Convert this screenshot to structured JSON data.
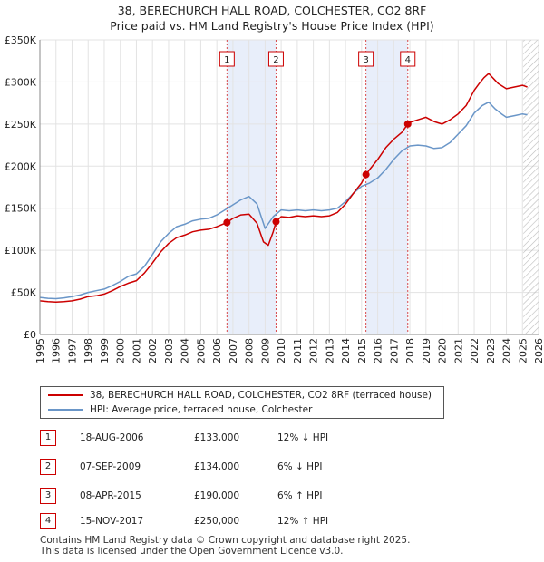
{
  "title_line1": "38, BERECHURCH HALL ROAD, COLCHESTER, CO2 8RF",
  "title_line2": "Price paid vs. HM Land Registry's House Price Index (HPI)",
  "colors": {
    "property": "#cc0000",
    "hpi": "#6a96c8",
    "shade": "#e8eefa",
    "marker": "#cc0000"
  },
  "chart_data": {
    "type": "line",
    "x_range": [
      1995,
      2026
    ],
    "ylim": [
      0,
      350000
    ],
    "y_ticks": [
      0,
      50000,
      100000,
      150000,
      200000,
      250000,
      300000,
      350000
    ],
    "y_tick_labels": [
      "£0",
      "£50K",
      "£100K",
      "£150K",
      "£200K",
      "£250K",
      "£300K",
      "£350K"
    ],
    "x_ticks": [
      1995,
      1996,
      1997,
      1998,
      1999,
      2000,
      2001,
      2002,
      2003,
      2004,
      2005,
      2006,
      2007,
      2008,
      2009,
      2010,
      2011,
      2012,
      2013,
      2014,
      2015,
      2016,
      2017,
      2018,
      2019,
      2020,
      2021,
      2022,
      2023,
      2024,
      2025,
      2026
    ],
    "x_tick_labels": [
      "1995",
      "1996",
      "1997",
      "1998",
      "1999",
      "2000",
      "2001",
      "2002",
      "2003",
      "2004",
      "2005",
      "2006",
      "2007",
      "2008",
      "2009",
      "2010",
      "2011",
      "2012",
      "2013",
      "2014",
      "2015",
      "2016",
      "2017",
      "2018",
      "2019",
      "2020",
      "2021",
      "2022",
      "2023",
      "2024",
      "2025",
      "2026"
    ],
    "shaded_spans": [
      [
        2006.63,
        2009.68
      ],
      [
        2015.27,
        2017.87
      ]
    ],
    "hatched_after": 2025.05,
    "series": [
      {
        "name": "38, BERECHURCH HALL ROAD, COLCHESTER, CO2 8RF (terraced house)",
        "color": "#cc0000",
        "x": [
          1995,
          1995.5,
          1996,
          1996.5,
          1997,
          1997.5,
          1998,
          1998.5,
          1999,
          1999.5,
          2000,
          2000.5,
          2001,
          2001.5,
          2002,
          2002.5,
          2003,
          2003.5,
          2004,
          2004.5,
          2005,
          2005.5,
          2006,
          2006.63,
          2007,
          2007.5,
          2008,
          2008.5,
          2008.9,
          2009.2,
          2009.5,
          2009.68,
          2010,
          2010.5,
          2011,
          2011.5,
          2012,
          2012.5,
          2013,
          2013.5,
          2014,
          2014.5,
          2015,
          2015.27,
          2015.5,
          2016,
          2016.5,
          2017,
          2017.5,
          2017.87,
          2018,
          2018.5,
          2019,
          2019.5,
          2020,
          2020.5,
          2021,
          2021.5,
          2022,
          2022.3,
          2022.6,
          2022.9,
          2023,
          2023.5,
          2024,
          2024.5,
          2025,
          2025.3
        ],
        "y": [
          40000,
          39000,
          38500,
          39000,
          40000,
          42000,
          45000,
          46000,
          48000,
          52000,
          57000,
          61000,
          64000,
          73000,
          85000,
          98000,
          108000,
          115000,
          118000,
          122000,
          124000,
          125000,
          128000,
          133000,
          138000,
          142000,
          143000,
          132000,
          110000,
          106000,
          122000,
          134000,
          140000,
          139000,
          141000,
          140000,
          141000,
          140000,
          141000,
          145000,
          155000,
          168000,
          180000,
          190000,
          196000,
          208000,
          222000,
          232000,
          240000,
          250000,
          252000,
          255000,
          258000,
          253000,
          250000,
          255000,
          262000,
          272000,
          290000,
          298000,
          305000,
          310000,
          308000,
          298000,
          292000,
          294000,
          296000,
          294000
        ]
      },
      {
        "name": "HPI: Average price, terraced house, Colchester",
        "color": "#6a96c8",
        "x": [
          1995,
          1995.5,
          1996,
          1996.5,
          1997,
          1997.5,
          1998,
          1998.5,
          1999,
          1999.5,
          2000,
          2000.5,
          2001,
          2001.5,
          2002,
          2002.5,
          2003,
          2003.5,
          2004,
          2004.5,
          2005,
          2005.5,
          2006,
          2006.5,
          2007,
          2007.5,
          2008,
          2008.5,
          2009,
          2009.5,
          2010,
          2010.5,
          2011,
          2011.5,
          2012,
          2012.5,
          2013,
          2013.5,
          2014,
          2014.5,
          2015,
          2015.5,
          2016,
          2016.5,
          2017,
          2017.5,
          2018,
          2018.5,
          2019,
          2019.5,
          2020,
          2020.5,
          2021,
          2021.5,
          2022,
          2022.5,
          2022.9,
          2023.3,
          2023.7,
          2024,
          2024.5,
          2025,
          2025.3
        ],
        "y": [
          44000,
          43000,
          42500,
          43500,
          45000,
          47000,
          50000,
          52000,
          54000,
          58000,
          63000,
          69000,
          72000,
          81000,
          95000,
          110000,
          120000,
          128000,
          131000,
          135000,
          137000,
          138000,
          142000,
          148000,
          154000,
          160000,
          164000,
          155000,
          126000,
          140000,
          148000,
          147000,
          148000,
          147000,
          148000,
          147000,
          148000,
          150000,
          158000,
          168000,
          176000,
          180000,
          186000,
          196000,
          208000,
          218000,
          224000,
          225000,
          224000,
          221000,
          222000,
          228000,
          238000,
          248000,
          263000,
          272000,
          276000,
          268000,
          262000,
          258000,
          260000,
          262000,
          261000
        ]
      }
    ],
    "markers": [
      {
        "label": "1",
        "x": 2006.63,
        "y": 133000
      },
      {
        "label": "2",
        "x": 2009.68,
        "y": 134000
      },
      {
        "label": "3",
        "x": 2015.27,
        "y": 190000
      },
      {
        "label": "4",
        "x": 2017.87,
        "y": 250000
      }
    ]
  },
  "legend": {
    "property": "38, BERECHURCH HALL ROAD, COLCHESTER, CO2 8RF (terraced house)",
    "hpi": "HPI: Average price, terraced house, Colchester"
  },
  "transactions": [
    {
      "label": "1",
      "date": "18-AUG-2006",
      "price": "£133,000",
      "hpi": "12% ↓ HPI"
    },
    {
      "label": "2",
      "date": "07-SEP-2009",
      "price": "£134,000",
      "hpi": "6% ↓ HPI"
    },
    {
      "label": "3",
      "date": "08-APR-2015",
      "price": "£190,000",
      "hpi": "6% ↑ HPI"
    },
    {
      "label": "4",
      "date": "15-NOV-2017",
      "price": "£250,000",
      "hpi": "12% ↑ HPI"
    }
  ],
  "footer_line1": "Contains HM Land Registry data © Crown copyright and database right 2025.",
  "footer_line2": "This data is licensed under the Open Government Licence v3.0."
}
